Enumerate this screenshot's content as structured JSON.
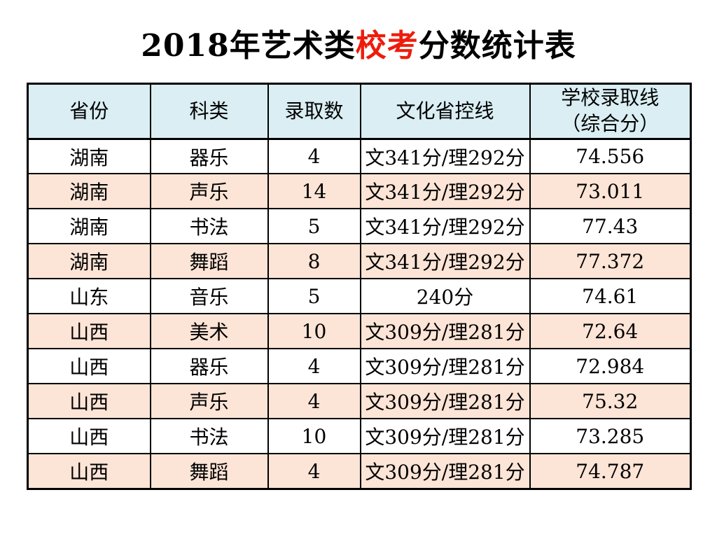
{
  "title": {
    "prefix": "2018年艺术类",
    "highlight": "校考",
    "suffix": "分数统计表"
  },
  "table": {
    "headers": [
      "省份",
      "科类",
      "录取数",
      "文化省控线",
      "学校录取线\n（综合分）"
    ],
    "rows": [
      [
        "湖南",
        "器乐",
        "4",
        "文341分/理292分",
        "74.556"
      ],
      [
        "湖南",
        "声乐",
        "14",
        "文341分/理292分",
        "73.011"
      ],
      [
        "湖南",
        "书法",
        "5",
        "文341分/理292分",
        "77.43"
      ],
      [
        "湖南",
        "舞蹈",
        "8",
        "文341分/理292分",
        "77.372"
      ],
      [
        "山东",
        "音乐",
        "5",
        "240分",
        "74.61"
      ],
      [
        "山西",
        "美术",
        "10",
        "文309分/理281分",
        "72.64"
      ],
      [
        "山西",
        "器乐",
        "4",
        "文309分/理281分",
        "72.984"
      ],
      [
        "山西",
        "声乐",
        "4",
        "文309分/理281分",
        "75.32"
      ],
      [
        "山西",
        "书法",
        "10",
        "文309分/理281分",
        "73.285"
      ],
      [
        "山西",
        "舞蹈",
        "4",
        "文309分/理281分",
        "74.787"
      ]
    ],
    "cell_names": [
      "cell-province",
      "cell-category",
      "cell-admit-count",
      "cell-control-line",
      "cell-admission-line"
    ]
  },
  "chart_data": {
    "type": "table",
    "title": "2018年艺术类校考分数统计表",
    "columns": [
      "省份",
      "科类",
      "录取数",
      "文化省控线",
      "学校录取线（综合分）"
    ],
    "rows": [
      [
        "湖南",
        "器乐",
        4,
        "文341分/理292分",
        74.556
      ],
      [
        "湖南",
        "声乐",
        14,
        "文341分/理292分",
        73.011
      ],
      [
        "湖南",
        "书法",
        5,
        "文341分/理292分",
        77.43
      ],
      [
        "湖南",
        "舞蹈",
        8,
        "文341分/理292分",
        77.372
      ],
      [
        "山东",
        "音乐",
        5,
        "240分",
        74.61
      ],
      [
        "山西",
        "美术",
        10,
        "文309分/理281分",
        72.64
      ],
      [
        "山西",
        "器乐",
        4,
        "文309分/理281分",
        72.984
      ],
      [
        "山西",
        "声乐",
        4,
        "文309分/理281分",
        75.32
      ],
      [
        "山西",
        "书法",
        10,
        "文309分/理281分",
        73.285
      ],
      [
        "山西",
        "舞蹈",
        4,
        "文309分/理281分",
        74.787
      ]
    ]
  },
  "colors": {
    "header_bg": "#daeef3",
    "stripe_bg": "#fce4d6",
    "highlight_text": "#ee1c0c",
    "border": "#000000",
    "text": "#000000",
    "page_bg": "#ffffff"
  }
}
